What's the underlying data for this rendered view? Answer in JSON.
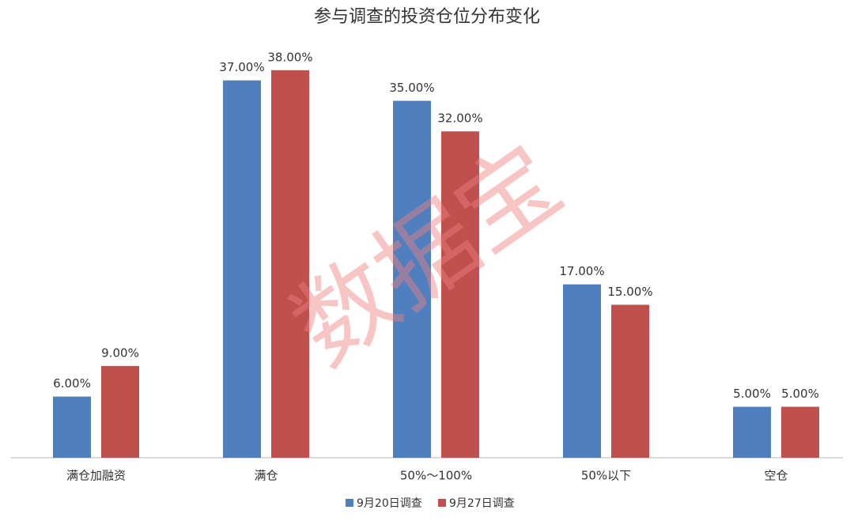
{
  "chart_data": {
    "type": "bar",
    "title": "参与调查的投资仓位分布变化",
    "categories": [
      "满仓加融资",
      "满仓",
      "50%～100%",
      "50%以下",
      "空仓"
    ],
    "series": [
      {
        "name": "9月20日调查",
        "color": "#4f7fbf",
        "values": [
          6,
          37,
          35,
          17,
          5
        ],
        "value_labels": [
          "6.00%",
          "37.00%",
          "35.00%",
          "17.00%",
          "5.00%"
        ]
      },
      {
        "name": "9月27日调查",
        "color": "#c0504d",
        "values": [
          9,
          38,
          32,
          15,
          5
        ],
        "value_labels": [
          "9.00%",
          "38.00%",
          "32.00%",
          "15.00%",
          "5.00%"
        ]
      }
    ],
    "legend": "bottom",
    "watermark": "数据宝"
  }
}
